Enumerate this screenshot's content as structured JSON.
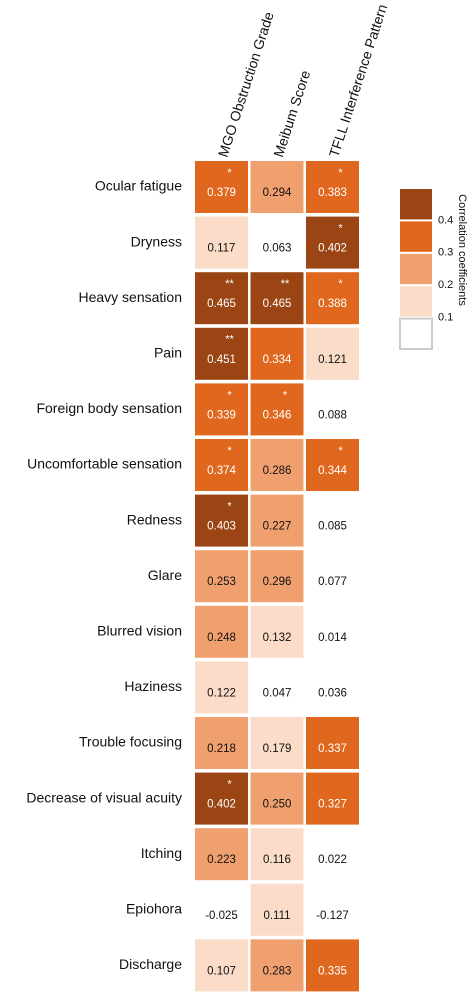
{
  "chart_data": {
    "type": "heatmap",
    "rows": [
      "Ocular fatigue",
      "Dryness",
      "Heavy sensation",
      "Pain",
      "Foreign body sensation",
      "Uncomfortable sensation",
      "Redness",
      "Glare",
      "Blurred vision",
      "Haziness",
      "Trouble focusing",
      "Decrease of visual acuity",
      "Itching",
      "Epiohora",
      "Discharge"
    ],
    "columns": [
      "MGO Obstruction Grade",
      "Meibum Score",
      "TFLL Interference Pattern"
    ],
    "values": [
      [
        0.379,
        0.294,
        0.383
      ],
      [
        0.117,
        0.063,
        0.402
      ],
      [
        0.465,
        0.465,
        0.388
      ],
      [
        0.451,
        0.334,
        0.121
      ],
      [
        0.339,
        0.346,
        0.088
      ],
      [
        0.374,
        0.286,
        0.344
      ],
      [
        0.403,
        0.227,
        0.085
      ],
      [
        0.253,
        0.296,
        0.077
      ],
      [
        0.248,
        0.132,
        0.014
      ],
      [
        0.122,
        0.047,
        0.036
      ],
      [
        0.218,
        0.179,
        0.337
      ],
      [
        0.402,
        0.25,
        0.327
      ],
      [
        0.223,
        0.116,
        0.022
      ],
      [
        -0.025,
        0.111,
        -0.127
      ],
      [
        0.107,
        0.283,
        0.335
      ]
    ],
    "value_labels": [
      [
        "0.379",
        "0.294",
        "0.383"
      ],
      [
        "0.117",
        "0.063",
        "0.402"
      ],
      [
        "0.465",
        "0.465",
        "0.388"
      ],
      [
        "0.451",
        "0.334",
        "0.121"
      ],
      [
        "0.339",
        "0.346",
        "0.088"
      ],
      [
        "0.374",
        "0.286",
        "0.344"
      ],
      [
        "0.403",
        "0.227",
        "0.085"
      ],
      [
        "0.253",
        "0.296",
        "0.077"
      ],
      [
        "0.248",
        "0.132",
        "0.014"
      ],
      [
        "0.122",
        "0.047",
        "0.036"
      ],
      [
        "0.218",
        "0.179",
        "0.337"
      ],
      [
        "0.402",
        "0.250",
        "0.327"
      ],
      [
        "0.223",
        "0.116",
        "0.022"
      ],
      [
        "-0.025",
        "0.111",
        "-0.127"
      ],
      [
        "0.107",
        "0.283",
        "0.335"
      ]
    ],
    "stars": [
      [
        "*",
        null,
        "*"
      ],
      [
        null,
        null,
        "*"
      ],
      [
        "**",
        "**",
        "*"
      ],
      [
        "**",
        null,
        null
      ],
      [
        "*",
        "*",
        null
      ],
      [
        "*",
        null,
        "*"
      ],
      [
        "*",
        null,
        null
      ],
      [
        null,
        null,
        null
      ],
      [
        null,
        null,
        null
      ],
      [
        null,
        null,
        null
      ],
      [
        null,
        null,
        null
      ],
      [
        "*",
        null,
        null
      ],
      [
        null,
        null,
        null
      ],
      [
        null,
        null,
        null
      ],
      [
        null,
        null,
        null
      ]
    ],
    "legend_title": "Correlation coefficients",
    "legend_ticks": [
      0.1,
      0.2,
      0.3,
      0.4
    ],
    "colors": [
      "#ffffff",
      "#fbdcc8",
      "#f0a06e",
      "#e0681e",
      "#9a4513"
    ]
  }
}
